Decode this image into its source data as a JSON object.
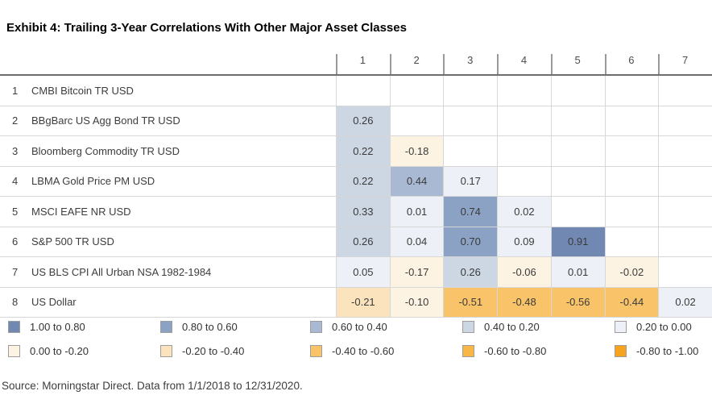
{
  "header": {
    "title": "Exhibit 4: Trailing 3-Year Correlations With Other Major Asset Classes"
  },
  "chart_data": {
    "type": "heatmap",
    "title": "Exhibit 4: Trailing 3-Year Correlations With Other Major Asset Classes",
    "columns": [
      "1",
      "2",
      "3",
      "4",
      "5",
      "6",
      "7"
    ],
    "rows": [
      {
        "num": "1",
        "label": "CMBI Bitcoin TR USD",
        "values": []
      },
      {
        "num": "2",
        "label": "BBgBarc US Agg Bond TR USD",
        "values": [
          0.26
        ]
      },
      {
        "num": "3",
        "label": "Bloomberg Commodity TR USD",
        "values": [
          0.22,
          -0.18
        ]
      },
      {
        "num": "4",
        "label": "LBMA Gold Price PM USD",
        "values": [
          0.22,
          0.44,
          0.17
        ]
      },
      {
        "num": "5",
        "label": "MSCI EAFE NR USD",
        "values": [
          0.33,
          0.01,
          0.74,
          0.02
        ]
      },
      {
        "num": "6",
        "label": "S&P 500 TR USD",
        "values": [
          0.26,
          0.04,
          0.7,
          0.09,
          0.91
        ]
      },
      {
        "num": "7",
        "label": "US BLS CPI All Urban NSA 1982-1984",
        "values": [
          0.05,
          -0.17,
          0.26,
          -0.06,
          0.01,
          -0.02
        ]
      },
      {
        "num": "8",
        "label": "US Dollar",
        "values": [
          -0.21,
          -0.1,
          -0.51,
          -0.48,
          -0.56,
          -0.44,
          0.02
        ]
      }
    ],
    "legend": [
      {
        "label": "1.00 to 0.80",
        "color": "#7189b2",
        "min": 0.8
      },
      {
        "label": "0.80 to 0.60",
        "color": "#8ba2c4",
        "min": 0.6
      },
      {
        "label": "0.60 to 0.40",
        "color": "#aab9d3",
        "min": 0.4
      },
      {
        "label": "0.40 to 0.20",
        "color": "#cdd7e4",
        "min": 0.2
      },
      {
        "label": "0.20 to 0.00",
        "color": "#edf1f7",
        "min": 0.0
      },
      {
        "label": "0.00 to -0.20",
        "color": "#fdf3e2",
        "min": -0.2
      },
      {
        "label": "-0.20 to -0.40",
        "color": "#fbe4bd",
        "min": -0.4
      },
      {
        "label": "-0.40 to -0.60",
        "color": "#f9c469",
        "min": -0.6
      },
      {
        "label": "-0.60 to -0.80",
        "color": "#f8b647",
        "min": -0.8
      },
      {
        "label": "-0.80 to -1.00",
        "color": "#f6a41f",
        "min": -1.0
      }
    ],
    "grid": true,
    "legend_position": "bottom"
  },
  "footer": {
    "source": "Source: Morningstar Direct. Data from 1/1/2018 to 12/31/2020."
  }
}
